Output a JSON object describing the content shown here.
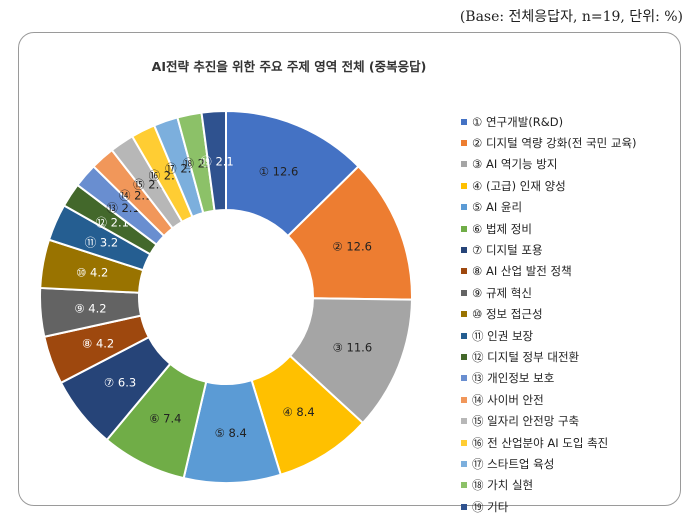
{
  "caption": "(Base: 전체응답자, n=19, 단위: %)",
  "chart_data": {
    "type": "pie",
    "style": "donut",
    "title": "AI전략 추진을 위한 주요 주제 영역 전체 (중복응답)",
    "legend_position": "right",
    "slices": [
      {
        "marker": "①",
        "label": "연구개발(R&D)",
        "value": 12.6,
        "color": "#4472C4"
      },
      {
        "marker": "②",
        "label": "디지털 역량 강화(전 국민 교육)",
        "value": 12.6,
        "color": "#ED7D31"
      },
      {
        "marker": "③",
        "label": "AI 역기능 방지",
        "value": 11.6,
        "color": "#A5A5A5"
      },
      {
        "marker": "④",
        "label": "(고급) 인재 양성",
        "value": 8.4,
        "color": "#FFC000"
      },
      {
        "marker": "⑤",
        "label": "AI 윤리",
        "value": 8.4,
        "color": "#5B9BD5"
      },
      {
        "marker": "⑥",
        "label": "법제 정비",
        "value": 7.4,
        "color": "#70AD47"
      },
      {
        "marker": "⑦",
        "label": "디지털 포용",
        "value": 6.3,
        "color": "#264478"
      },
      {
        "marker": "⑧",
        "label": "AI 산업 발전 정책",
        "value": 4.2,
        "color": "#9E480E"
      },
      {
        "marker": "⑨",
        "label": "규제 혁신",
        "value": 4.2,
        "color": "#636363"
      },
      {
        "marker": "⑩",
        "label": "정보 접근성",
        "value": 4.2,
        "color": "#997300"
      },
      {
        "marker": "⑪",
        "label": "인권 보장",
        "value": 3.2,
        "color": "#255E91"
      },
      {
        "marker": "⑫",
        "label": "디지털 정부 대전환",
        "value": 2.1,
        "color": "#43682B"
      },
      {
        "marker": "⑬",
        "label": "개인정보 보호",
        "value": 2.1,
        "color": "#698ED0"
      },
      {
        "marker": "⑭",
        "label": "사이버 안전",
        "value": 2.1,
        "color": "#F1975A"
      },
      {
        "marker": "⑮",
        "label": "일자리 안전망 구축",
        "value": 2.1,
        "color": "#B7B7B7"
      },
      {
        "marker": "⑯",
        "label": "전 산업분야 AI 도입 촉진",
        "value": 2.1,
        "color": "#FFCD33"
      },
      {
        "marker": "⑰",
        "label": "스타트업 육성",
        "value": 2.1,
        "color": "#7CAFDD"
      },
      {
        "marker": "⑱",
        "label": "가치 실현",
        "value": 2.1,
        "color": "#8CC168"
      },
      {
        "marker": "⑲",
        "label": "기타",
        "value": 2.1,
        "color": "#2F528F"
      }
    ]
  }
}
